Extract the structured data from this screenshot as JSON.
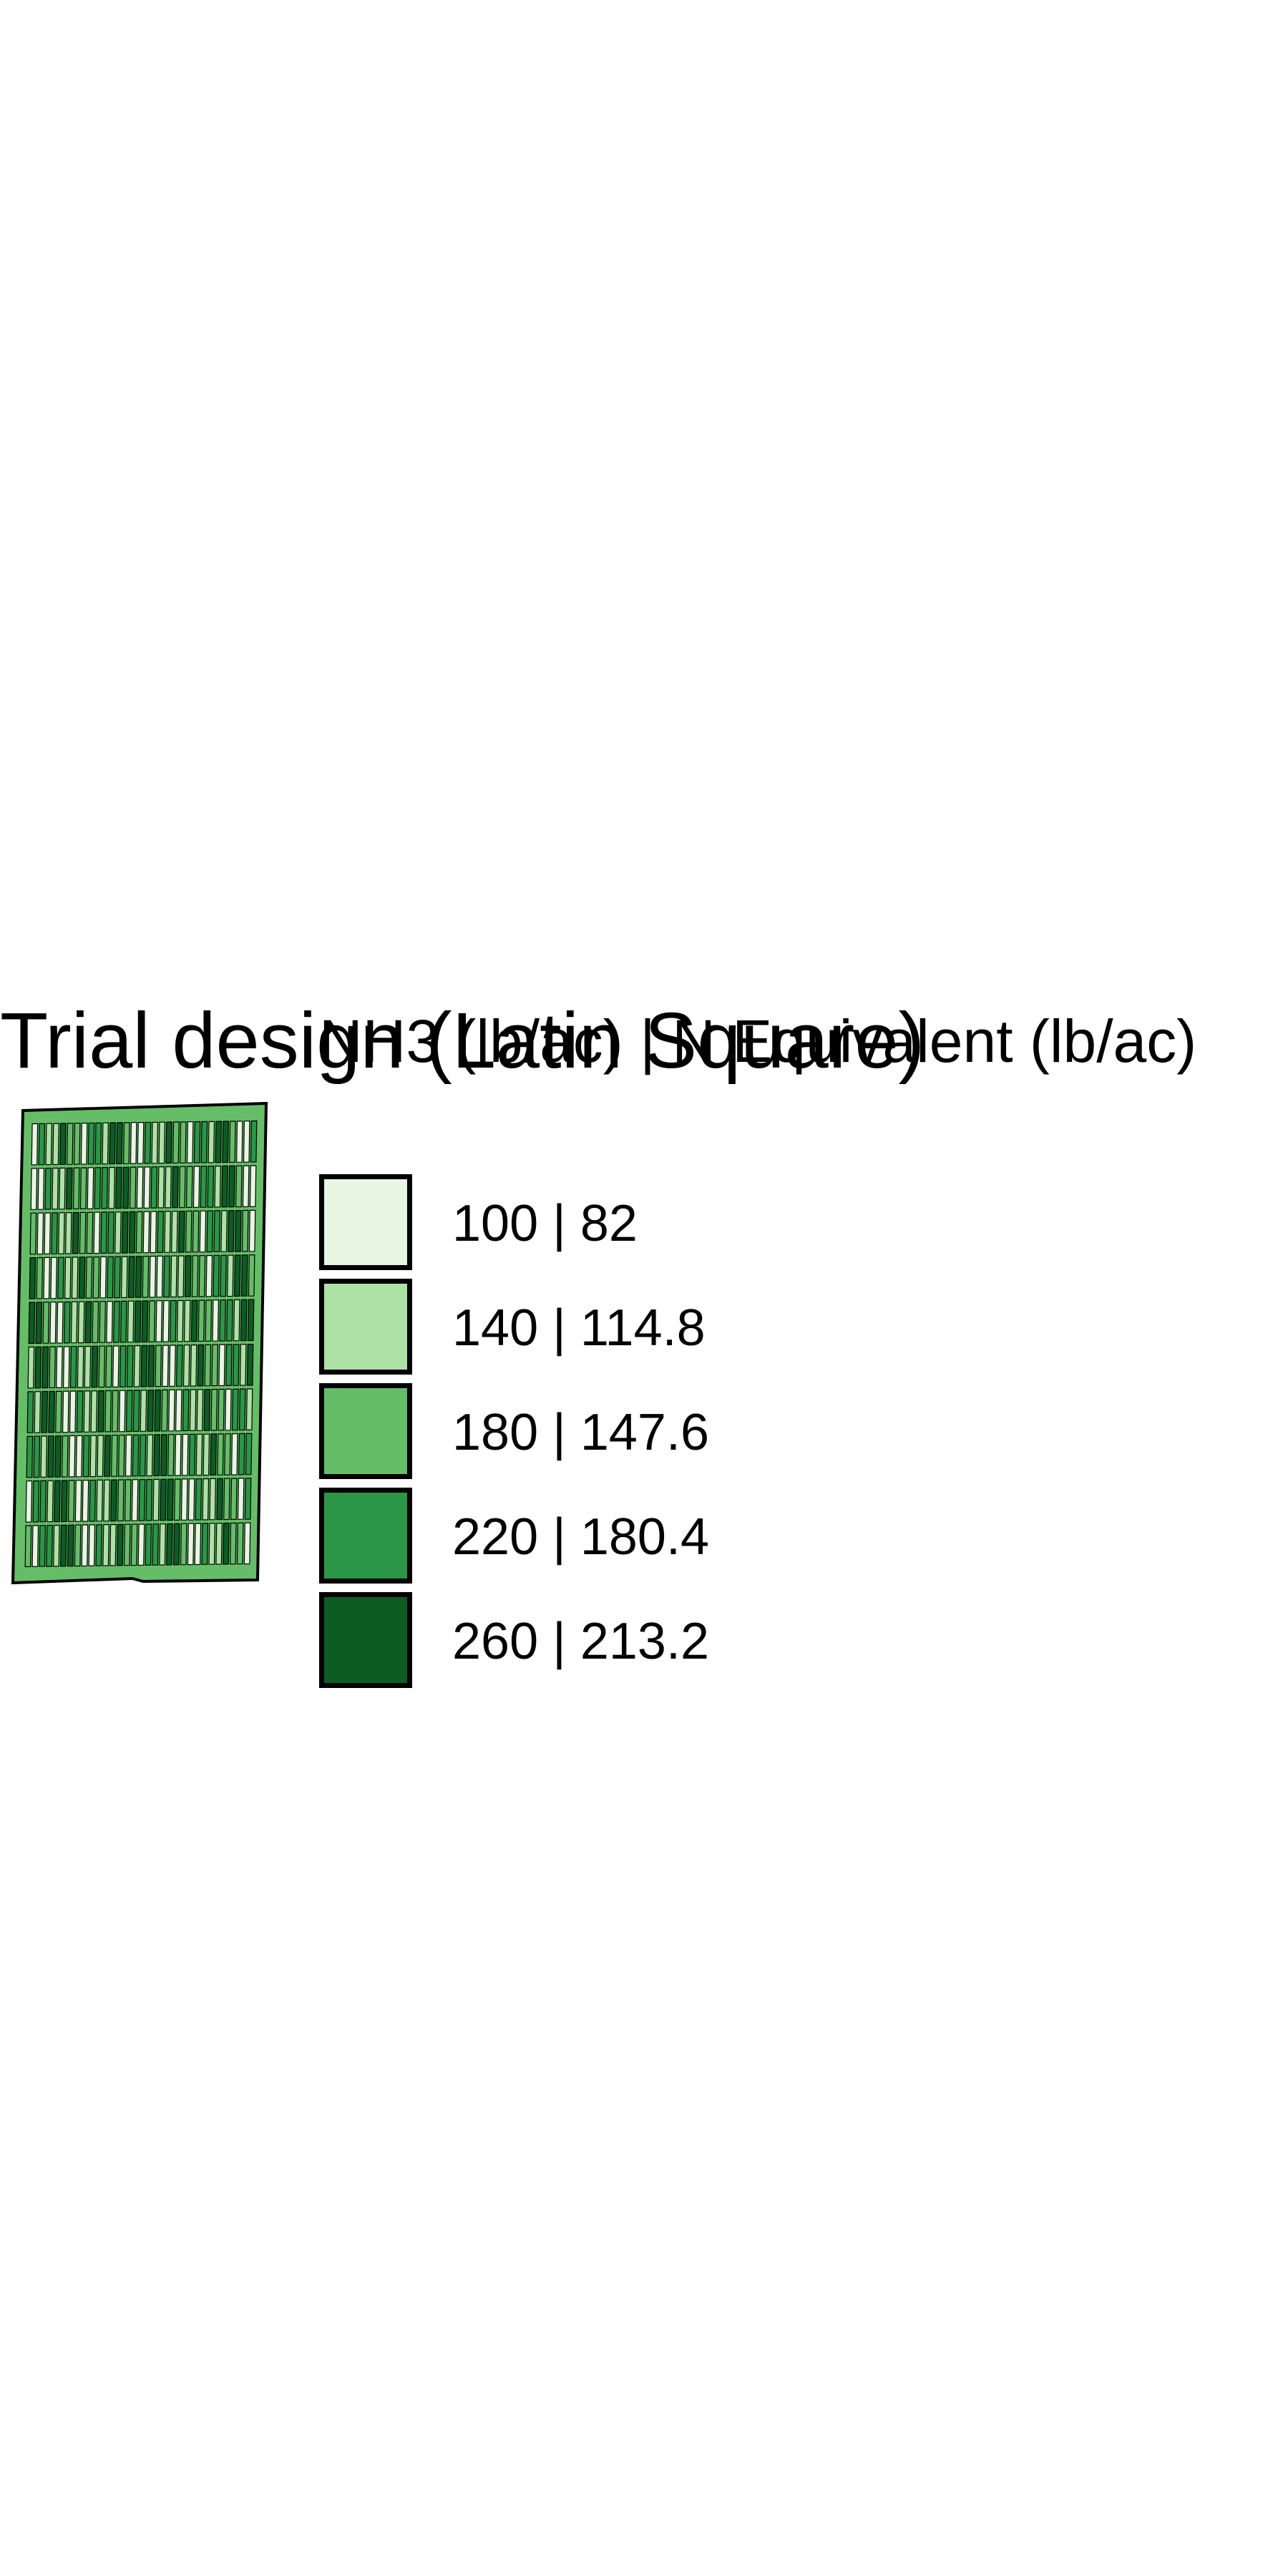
{
  "title": "Trial design (Latin Square)",
  "legend": {
    "title": "NH3 (lb/ac) | N Equivalent (lb/ac)",
    "items": [
      {
        "label": "100 | 82",
        "color": "#e8f5e3"
      },
      {
        "label": "140 | 114.8",
        "color": "#ade1a5"
      },
      {
        "label": "180 | 147.6",
        "color": "#66bd68"
      },
      {
        "label": "220 | 180.4",
        "color": "#2b9647"
      },
      {
        "label": "260 | 213.2",
        "color": "#0c5c23"
      }
    ]
  },
  "map": {
    "field_boundary_color": "#66bd68",
    "plot_rows": 10,
    "plots_per_row": 32
  }
}
